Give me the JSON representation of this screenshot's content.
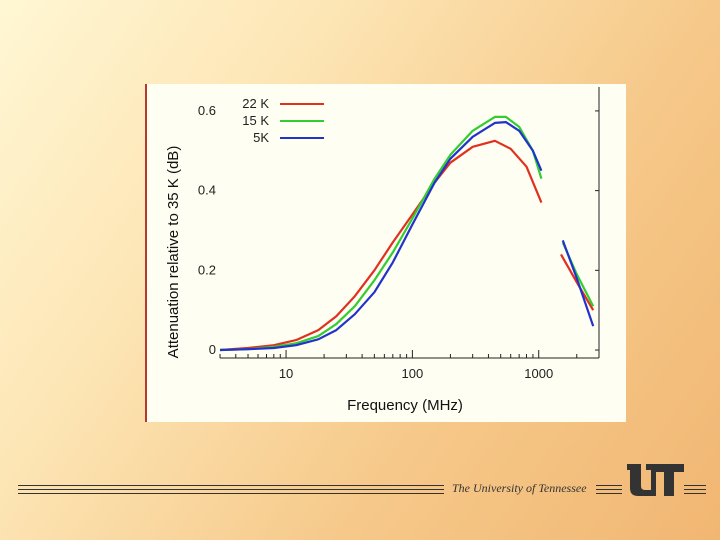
{
  "chart_data": {
    "type": "line",
    "xlabel": "Frequency (MHz)",
    "ylabel": "Attenuation relative to 35 K (dB)",
    "x_scale": "log",
    "xlim": [
      3,
      3000
    ],
    "ylim": [
      -0.02,
      0.66
    ],
    "x_ticks": [
      {
        "value": 10,
        "label": "10"
      },
      {
        "value": 100,
        "label": "100"
      },
      {
        "value": 1000,
        "label": "1000"
      }
    ],
    "y_ticks": [
      {
        "value": 0,
        "label": "0"
      },
      {
        "value": 0.2,
        "label": "0.2"
      },
      {
        "value": 0.4,
        "label": "0.4"
      },
      {
        "value": 0.6,
        "label": "0.6"
      }
    ],
    "legend_position": "top-left",
    "series": [
      {
        "name": "22 K",
        "color": "#e03020",
        "segments": [
          [
            [
              3,
              0
            ],
            [
              5,
              0.005
            ],
            [
              8,
              0.012
            ],
            [
              12,
              0.025
            ],
            [
              18,
              0.05
            ],
            [
              25,
              0.085
            ],
            [
              35,
              0.135
            ],
            [
              50,
              0.2
            ],
            [
              70,
              0.27
            ],
            [
              100,
              0.34
            ],
            [
              150,
              0.42
            ],
            [
              200,
              0.47
            ],
            [
              300,
              0.51
            ],
            [
              450,
              0.525
            ],
            [
              600,
              0.505
            ],
            [
              800,
              0.46
            ],
            [
              1050,
              0.37
            ]
          ],
          [
            [
              1500,
              0.24
            ],
            [
              2000,
              0.17
            ],
            [
              2700,
              0.1
            ]
          ]
        ]
      },
      {
        "name": "15 K",
        "color": "#33cc33",
        "segments": [
          [
            [
              3,
              0
            ],
            [
              5,
              0.002
            ],
            [
              8,
              0.008
            ],
            [
              12,
              0.017
            ],
            [
              18,
              0.035
            ],
            [
              25,
              0.065
            ],
            [
              35,
              0.11
            ],
            [
              50,
              0.175
            ],
            [
              70,
              0.245
            ],
            [
              100,
              0.33
            ],
            [
              150,
              0.43
            ],
            [
              200,
              0.49
            ],
            [
              300,
              0.55
            ],
            [
              450,
              0.585
            ],
            [
              550,
              0.585
            ],
            [
              700,
              0.56
            ],
            [
              900,
              0.5
            ],
            [
              1050,
              0.43
            ]
          ],
          [
            [
              1550,
              0.27
            ],
            [
              2000,
              0.19
            ],
            [
              2700,
              0.11
            ]
          ]
        ]
      },
      {
        "name": "5K",
        "color": "#2233cc",
        "segments": [
          [
            [
              3,
              0
            ],
            [
              5,
              0.002
            ],
            [
              8,
              0.005
            ],
            [
              12,
              0.012
            ],
            [
              18,
              0.027
            ],
            [
              25,
              0.05
            ],
            [
              35,
              0.09
            ],
            [
              50,
              0.145
            ],
            [
              70,
              0.22
            ],
            [
              100,
              0.315
            ],
            [
              150,
              0.42
            ],
            [
              200,
              0.48
            ],
            [
              300,
              0.535
            ],
            [
              450,
              0.57
            ],
            [
              550,
              0.572
            ],
            [
              700,
              0.55
            ],
            [
              900,
              0.5
            ],
            [
              1050,
              0.45
            ]
          ],
          [
            [
              1550,
              0.275
            ],
            [
              2000,
              0.18
            ],
            [
              2700,
              0.06
            ]
          ]
        ]
      }
    ]
  },
  "footer": {
    "text": "The University of Tennessee",
    "logo_color": "#333333"
  }
}
